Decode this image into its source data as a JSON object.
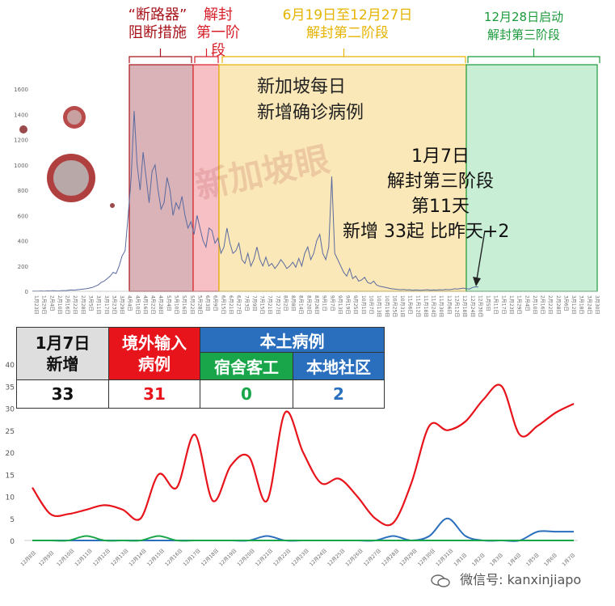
{
  "annotations": {
    "phase0_line1": "“断路器”",
    "phase0_line2": "阻断措施",
    "phase1_line1": "解封",
    "phase1_line2": "第一阶段",
    "phase2_line1": "6月19日至12月27日",
    "phase2_line2": "解封第二阶段",
    "phase3_line1": "12月28日启动",
    "phase3_line2": "解封第三阶段",
    "title_line1": "新加坡每日",
    "title_line2": "新增确诊病例",
    "note_line1": "1月7日",
    "note_line2": "解封第三阶段",
    "note_line3": "第11天",
    "note_line4": "新增 33起  比昨天+2",
    "watermark": "新加坡眼"
  },
  "summary": {
    "date_line1": "1月7日",
    "date_line2": "新增",
    "imported_line1": "境外输入",
    "imported_line2": "病例",
    "local_header": "本土病例",
    "dorm_header": "宿舍客工",
    "community_header": "本地社区",
    "total": "33",
    "imported": "31",
    "dorm": "0",
    "community": "2"
  },
  "footer": {
    "wechat": "微信号: kanxinjiapo"
  },
  "colors": {
    "phase0_fill": "#d9b3b8",
    "phase1_fill": "#f6c0c4",
    "phase2_fill": "#fbe8b8",
    "phase3_fill": "#c8efd6",
    "imported": "#e8141c",
    "dorm": "#19a64a",
    "community": "#2a6fbe",
    "daily_line": "#5a6aa0"
  },
  "chart_data": [
    {
      "type": "line",
      "title": "新加坡每日新增确诊病例",
      "ylim": [
        0,
        1600
      ],
      "yticks": [
        0,
        200,
        400,
        600,
        800,
        1000,
        1200,
        1400,
        1600
      ],
      "xlabels": [
        "1月23日",
        "1月29日",
        "2月4日",
        "2月10日",
        "2月16日",
        "2月22日",
        "2月28日",
        "3月5日",
        "3月11日",
        "3月17日",
        "3月23日",
        "3月29日",
        "4月4日",
        "4月10日",
        "4月16日",
        "4月22日",
        "4月28日",
        "5月4日",
        "5月10日",
        "5月16日",
        "5月22日",
        "5月28日",
        "6月3日",
        "6月9日",
        "6月15日",
        "6月21日",
        "6月27日",
        "7月3日",
        "7月9日",
        "7月15日",
        "7月21日",
        "7月27日",
        "8月2日",
        "8月8日",
        "8月14日",
        "8月20日",
        "8月26日",
        "9月1日",
        "9月7日",
        "9月13日",
        "9月19日",
        "9月25日",
        "10月1日",
        "10月7日",
        "10月13日",
        "10月19日",
        "10月25日",
        "10月31日",
        "11月6日",
        "11月12日",
        "11月18日",
        "11月24日",
        "11月30日",
        "12月6日",
        "12月12日",
        "12月18日",
        "12月24日",
        "12月30日",
        "1月5日",
        "1月11日",
        "1月17日",
        "1月23日",
        "1月29日",
        "2月4日",
        "2月10日",
        "2月16日",
        "2月22日",
        "2月28日",
        "3月6日",
        "3月12日",
        "3月18日",
        "3月24日",
        "3月30日"
      ],
      "series": [
        {
          "values": [
            1,
            2,
            1,
            3,
            2,
            4,
            3,
            5,
            4,
            3,
            6,
            5,
            8,
            10,
            9,
            12,
            15,
            18,
            20,
            25,
            30,
            40,
            50,
            70,
            80,
            100,
            120,
            150,
            140,
            200,
            280,
            320,
            600,
            900,
            1426,
            1000,
            800,
            1100,
            900,
            700,
            950,
            1000,
            800,
            650,
            700,
            900,
            800,
            600,
            700,
            650,
            750,
            600,
            500,
            550,
            450,
            600,
            500,
            400,
            350,
            500,
            480,
            380,
            420,
            300,
            350,
            500,
            380,
            300,
            320,
            380,
            250,
            220,
            300,
            200,
            250,
            350,
            250,
            200,
            270,
            200,
            220,
            180,
            210,
            250,
            220,
            180,
            200,
            230,
            190,
            260,
            200,
            300,
            350,
            250,
            300,
            400,
            450,
            300,
            250,
            350,
            908,
            300,
            250,
            200,
            150,
            120,
            180,
            100,
            120,
            80,
            90,
            110,
            70,
            60,
            80,
            50,
            40,
            35,
            30,
            25,
            20,
            18,
            15,
            12,
            15,
            10,
            12,
            8,
            10,
            9,
            8,
            10,
            12,
            8,
            10,
            9,
            12,
            10,
            15,
            12,
            14,
            20,
            18,
            22,
            25,
            20,
            18,
            30,
            35,
            33
          ]
        }
      ]
    },
    {
      "type": "line",
      "ylim": [
        0,
        40
      ],
      "yticks": [
        0,
        5,
        10,
        15,
        20,
        25,
        30,
        35,
        40
      ],
      "categories": [
        "12月8日",
        "12月9日",
        "12月10日",
        "12月11日",
        "12月12日",
        "12月13日",
        "12月14日",
        "12月15日",
        "12月16日",
        "12月17日",
        "12月18日",
        "12月19日",
        "12月20日",
        "12月21日",
        "12月22日",
        "12月23日",
        "12月24日",
        "12月25日",
        "12月26日",
        "12月27日",
        "12月28日",
        "12月29日",
        "12月30日",
        "12月31日",
        "1月1日",
        "1月2日",
        "1月3日",
        "1月4日",
        "1月5日",
        "1月6日",
        "1月7日"
      ],
      "series": [
        {
          "name": "境外输入病例",
          "values": [
            12,
            6,
            6,
            7,
            8,
            7,
            5,
            15,
            12,
            24,
            9,
            17,
            19,
            9,
            29,
            20,
            13,
            14,
            10,
            5,
            4,
            13,
            26,
            25,
            27,
            32,
            35,
            24,
            26,
            29,
            31
          ]
        },
        {
          "name": "宿舍客工",
          "values": [
            0,
            0,
            0,
            1,
            0,
            0,
            0,
            1,
            0,
            0,
            0,
            0,
            0,
            0,
            0,
            0,
            0,
            0,
            0,
            0,
            0,
            0,
            0,
            0,
            0,
            0,
            0,
            0,
            0,
            0,
            0
          ]
        },
        {
          "name": "本地社区",
          "values": [
            0,
            0,
            0,
            0,
            0,
            0,
            0,
            0,
            0,
            0,
            0,
            0,
            0,
            1,
            0,
            0,
            0,
            0,
            0,
            0,
            1,
            0,
            1,
            5,
            1,
            0,
            0,
            0,
            2,
            2,
            2
          ]
        }
      ]
    }
  ]
}
